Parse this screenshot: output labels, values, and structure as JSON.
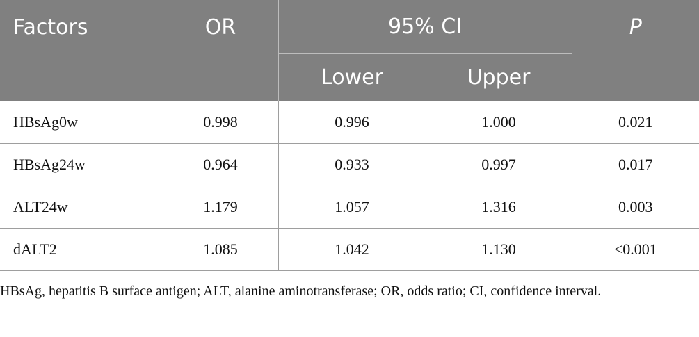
{
  "table": {
    "headers": {
      "factors": "Factors",
      "or": "OR",
      "ci": "95% CI",
      "lower": "Lower",
      "upper": "Upper",
      "p": "P"
    },
    "rows": [
      {
        "factor": "HBsAg0w",
        "or": "0.998",
        "lower": "0.996",
        "upper": "1.000",
        "p": "0.021"
      },
      {
        "factor": "HBsAg24w",
        "or": "0.964",
        "lower": "0.933",
        "upper": "0.997",
        "p": "0.017"
      },
      {
        "factor": "ALT24w",
        "or": "1.179",
        "lower": "1.057",
        "upper": "1.316",
        "p": "0.003"
      },
      {
        "factor": "dALT2",
        "or": "1.085",
        "lower": "1.042",
        "upper": "1.130",
        "p": "<0.001"
      }
    ]
  },
  "footnote": "HBsAg, hepatitis B surface antigen; ALT, alanine aminotransferase; OR, odds ratio; CI, confidence interval."
}
